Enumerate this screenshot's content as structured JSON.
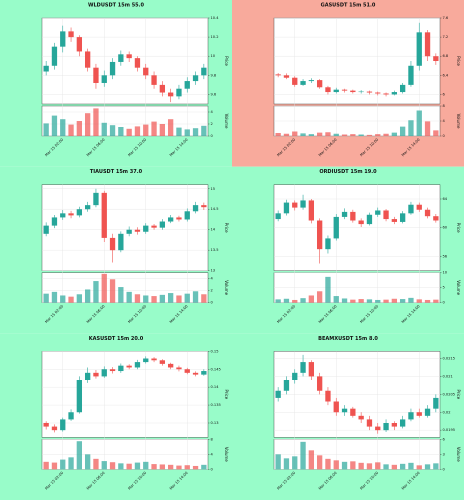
{
  "chart_data": [
    {
      "type": "candlestick",
      "title": "WLDUSDT 15m 55.0",
      "background": "#98fcc9",
      "ylabel": "Price",
      "vol_label": "Volume",
      "up_color": "#26a69a",
      "down_color": "#ef5350",
      "grid": true,
      "categories": [
        null,
        null,
        "Mar 15 02:00",
        null,
        null,
        null,
        null,
        "Mar 15 06:00",
        null,
        null,
        null,
        null,
        "Mar 15 10:00",
        null,
        null,
        null,
        null,
        "Mar 15 14:00",
        null,
        null
      ],
      "open": [
        9.84,
        9.9,
        10.1,
        10.26,
        10.2,
        10.05,
        9.88,
        9.72,
        9.8,
        9.94,
        10.02,
        9.98,
        9.88,
        9.8,
        9.7,
        9.62,
        9.58,
        9.66,
        9.74,
        9.8
      ],
      "high": [
        9.95,
        10.14,
        10.32,
        10.3,
        10.22,
        10.08,
        9.92,
        9.85,
        9.98,
        10.06,
        10.05,
        10.0,
        9.92,
        9.84,
        9.74,
        9.66,
        9.7,
        9.78,
        9.84,
        9.92
      ],
      "low": [
        9.8,
        9.86,
        10.04,
        10.15,
        10.0,
        9.84,
        9.66,
        9.68,
        9.76,
        9.9,
        9.94,
        9.84,
        9.76,
        9.66,
        9.58,
        9.52,
        9.55,
        9.62,
        9.7,
        9.76
      ],
      "close": [
        9.9,
        10.1,
        10.26,
        10.2,
        10.05,
        9.88,
        9.72,
        9.8,
        9.94,
        10.02,
        9.98,
        9.88,
        9.8,
        9.7,
        9.62,
        9.58,
        9.66,
        9.74,
        9.8,
        9.88
      ],
      "volume": [
        2.1,
        3.4,
        2.8,
        1.9,
        2.5,
        3.8,
        4.6,
        2.2,
        1.8,
        1.5,
        1.2,
        1.6,
        1.9,
        2.4,
        2.0,
        2.8,
        1.4,
        1.1,
        1.3,
        1.7
      ],
      "ylim": [
        9.5,
        10.4
      ],
      "yticks": [
        9.6,
        9.8,
        10,
        10.2,
        10.4
      ],
      "vol_ylim": [
        0,
        5
      ],
      "vol_yticks": [
        0,
        2,
        4
      ]
    },
    {
      "type": "candlestick",
      "title": "GASUSDT 15m 51.0",
      "background": "#f8aa9c",
      "ylabel": "Price",
      "vol_label": "Volume",
      "up_color": "#26a69a",
      "down_color": "#ef5350",
      "grid": true,
      "categories": [
        null,
        null,
        "Mar 15 02:00",
        null,
        null,
        null,
        null,
        "Mar 15 06:00",
        null,
        null,
        null,
        null,
        "Mar 15 10:00",
        null,
        null,
        null,
        null,
        "Mar 15 14:00",
        null,
        null
      ],
      "open": [
        6.42,
        6.4,
        6.35,
        6.2,
        6.28,
        6.3,
        6.15,
        6.05,
        6.1,
        6.08,
        6.05,
        6.06,
        6.04,
        6.02,
        6.0,
        6.05,
        6.2,
        6.6,
        7.3,
        6.8
      ],
      "high": [
        6.45,
        6.44,
        6.38,
        6.32,
        6.34,
        6.32,
        6.18,
        6.14,
        6.12,
        6.1,
        6.09,
        6.08,
        6.06,
        6.04,
        6.08,
        6.24,
        6.7,
        7.5,
        7.35,
        6.86
      ],
      "low": [
        6.36,
        6.32,
        6.16,
        6.18,
        6.24,
        6.12,
        6.0,
        6.02,
        6.04,
        6.02,
        6.02,
        6.0,
        5.98,
        5.96,
        5.98,
        6.02,
        6.16,
        6.5,
        6.7,
        6.62
      ],
      "close": [
        6.4,
        6.35,
        6.2,
        6.28,
        6.3,
        6.15,
        6.05,
        6.1,
        6.08,
        6.05,
        6.06,
        6.04,
        6.02,
        6.0,
        6.05,
        6.2,
        6.6,
        7.3,
        6.8,
        6.7
      ],
      "volume": [
        0.8,
        0.6,
        1.2,
        0.7,
        0.5,
        0.9,
        1.0,
        0.6,
        0.4,
        0.5,
        0.4,
        0.3,
        0.5,
        0.6,
        0.9,
        2.5,
        4.2,
        6.8,
        3.9,
        1.5
      ],
      "ylim": [
        5.8,
        7.6
      ],
      "yticks": [
        6,
        6.4,
        6.8,
        7.2,
        7.6
      ],
      "vol_ylim": [
        0,
        8
      ],
      "vol_yticks": [
        0,
        4,
        8
      ]
    },
    {
      "type": "candlestick",
      "title": "TIAUSDT 15m 37.0",
      "background": "#98fcc9",
      "ylabel": "Price",
      "vol_label": "Volume",
      "up_color": "#26a69a",
      "down_color": "#ef5350",
      "grid": true,
      "categories": [
        null,
        null,
        "Mar 15 02:00",
        null,
        null,
        null,
        null,
        "Mar 15 06:00",
        null,
        null,
        null,
        null,
        "Mar 15 10:00",
        null,
        null,
        null,
        null,
        "Mar 15 14:00",
        null,
        null
      ],
      "open": [
        13.9,
        14.1,
        14.3,
        14.4,
        14.35,
        14.5,
        14.6,
        14.9,
        13.8,
        13.5,
        13.9,
        14.0,
        13.95,
        14.1,
        14.05,
        14.2,
        14.3,
        14.25,
        14.45,
        14.6
      ],
      "high": [
        14.18,
        14.36,
        14.48,
        14.46,
        14.56,
        14.68,
        15.0,
        14.95,
        13.9,
        13.96,
        14.08,
        14.06,
        14.16,
        14.14,
        14.26,
        14.36,
        14.34,
        14.52,
        14.68,
        14.66
      ],
      "low": [
        13.84,
        14.04,
        14.24,
        14.28,
        14.3,
        14.44,
        14.55,
        13.7,
        13.2,
        13.45,
        13.84,
        13.88,
        13.9,
        14.0,
        14.0,
        14.16,
        14.2,
        14.2,
        14.4,
        14.48
      ],
      "close": [
        14.1,
        14.3,
        14.4,
        14.35,
        14.5,
        14.6,
        14.9,
        13.8,
        13.5,
        13.9,
        14.0,
        13.95,
        14.1,
        14.05,
        14.2,
        14.3,
        14.25,
        14.45,
        14.6,
        14.55
      ],
      "volume": [
        1.5,
        1.8,
        1.2,
        1.0,
        1.4,
        2.2,
        3.6,
        4.8,
        3.9,
        2.6,
        1.8,
        1.4,
        1.2,
        1.1,
        1.3,
        1.6,
        1.2,
        1.5,
        1.9,
        1.4
      ],
      "ylim": [
        13.0,
        15.1
      ],
      "yticks": [
        13,
        13.5,
        14,
        14.5,
        15
      ],
      "vol_ylim": [
        0,
        5
      ],
      "vol_yticks": [
        0,
        2,
        4
      ]
    },
    {
      "type": "candlestick",
      "title": "ORDIUSDT 15m 19.0",
      "background": "#98fcc9",
      "ylabel": "Price",
      "vol_label": "Volume",
      "up_color": "#26a69a",
      "down_color": "#ef5350",
      "grid": true,
      "categories": [
        null,
        null,
        "Mar 15 02:00",
        null,
        null,
        null,
        null,
        "Mar 15 06:00",
        null,
        null,
        null,
        null,
        "Mar 15 10:00",
        null,
        null,
        null,
        null,
        "Mar 15 14:00",
        null,
        null
      ],
      "open": [
        61.2,
        62.0,
        63.5,
        62.8,
        63.8,
        61.0,
        57.0,
        58.5,
        61.5,
        62.2,
        61.0,
        60.5,
        61.8,
        62.4,
        61.2,
        60.8,
        62.0,
        63.2,
        62.5,
        61.6
      ],
      "high": [
        62.4,
        63.9,
        63.8,
        64.6,
        64.0,
        61.3,
        58.9,
        61.9,
        62.7,
        62.5,
        61.3,
        62.1,
        62.8,
        62.6,
        61.5,
        62.3,
        63.6,
        63.5,
        62.8,
        61.9
      ],
      "low": [
        60.9,
        61.7,
        62.4,
        62.5,
        60.6,
        55.0,
        56.4,
        58.2,
        61.2,
        60.7,
        60.1,
        60.3,
        61.5,
        60.9,
        60.5,
        60.6,
        61.8,
        62.2,
        61.3,
        60.7
      ],
      "close": [
        62.0,
        63.5,
        62.8,
        63.8,
        61.0,
        57.0,
        58.5,
        61.5,
        62.2,
        61.0,
        60.5,
        61.8,
        62.4,
        61.2,
        60.8,
        62.0,
        63.2,
        62.5,
        61.6,
        61.0
      ],
      "volume": [
        1.1,
        1.3,
        0.9,
        1.5,
        2.4,
        3.8,
        8.6,
        2.2,
        1.4,
        1.0,
        1.2,
        1.1,
        0.9,
        1.0,
        1.3,
        1.2,
        1.6,
        1.1,
        0.9,
        1.0
      ],
      "ylim": [
        54,
        66
      ],
      "yticks": [
        56,
        60,
        64
      ],
      "vol_ylim": [
        0,
        10
      ],
      "vol_yticks": [
        0,
        5,
        10
      ]
    },
    {
      "type": "candlestick",
      "title": "KASUSDT 15m 20.0",
      "background": "#98fcc9",
      "ylabel": "Price",
      "vol_label": "Volume",
      "up_color": "#26a69a",
      "down_color": "#ef5350",
      "grid": true,
      "categories": [
        null,
        null,
        "Mar 15 02:00",
        null,
        null,
        null,
        null,
        "Mar 15 06:00",
        null,
        null,
        null,
        null,
        "Mar 15 10:00",
        null,
        null,
        null,
        null,
        "Mar 15 14:00",
        null,
        null
      ],
      "open": [
        0.13,
        0.129,
        0.128,
        0.131,
        0.133,
        0.142,
        0.144,
        0.143,
        0.145,
        0.1445,
        0.146,
        0.1455,
        0.147,
        0.148,
        0.1475,
        0.1465,
        0.1455,
        0.145,
        0.144,
        0.1435
      ],
      "high": [
        0.1305,
        0.1296,
        0.1315,
        0.1338,
        0.143,
        0.1455,
        0.1448,
        0.1458,
        0.1456,
        0.1466,
        0.1464,
        0.1476,
        0.1486,
        0.1484,
        0.1478,
        0.1468,
        0.146,
        0.1454,
        0.1444,
        0.145
      ],
      "low": [
        0.1282,
        0.1274,
        0.1276,
        0.1306,
        0.1326,
        0.1412,
        0.1424,
        0.1426,
        0.1438,
        0.144,
        0.145,
        0.145,
        0.1466,
        0.147,
        0.146,
        0.145,
        0.1444,
        0.1436,
        0.143,
        0.1432
      ],
      "close": [
        0.129,
        0.128,
        0.131,
        0.133,
        0.142,
        0.144,
        0.143,
        0.145,
        0.1445,
        0.146,
        0.1455,
        0.147,
        0.148,
        0.1475,
        0.1465,
        0.1455,
        0.145,
        0.144,
        0.1435,
        0.1445
      ],
      "volume": [
        2.0,
        1.8,
        2.6,
        3.2,
        7.5,
        4.0,
        2.8,
        2.2,
        1.9,
        1.6,
        1.5,
        1.8,
        2.0,
        1.4,
        1.3,
        1.2,
        1.0,
        1.1,
        0.9,
        1.2
      ],
      "ylim": [
        0.126,
        0.15
      ],
      "yticks": [
        0.13,
        0.135,
        0.14,
        0.145,
        0.15
      ],
      "vol_ylim": [
        0,
        8
      ],
      "vol_yticks": [
        0,
        4,
        8
      ]
    },
    {
      "type": "candlestick",
      "title": "BEAMXUSDT 15m 8.0",
      "background": "#98fcc9",
      "ylabel": "Price",
      "vol_label": "Volume",
      "up_color": "#26a69a",
      "down_color": "#ef5350",
      "grid": true,
      "categories": [
        null,
        null,
        "Mar 15 02:00",
        null,
        null,
        null,
        null,
        "Mar 15 06:00",
        null,
        null,
        null,
        null,
        "Mar 15 10:00",
        null,
        null,
        null,
        null,
        "Mar 15 14:00",
        null,
        null
      ],
      "open": [
        0.0204,
        0.0206,
        0.0209,
        0.0211,
        0.0214,
        0.021,
        0.0206,
        0.0203,
        0.02,
        0.0201,
        0.0199,
        0.0198,
        0.0196,
        0.0195,
        0.0197,
        0.0196,
        0.0198,
        0.02,
        0.0199,
        0.0201
      ],
      "high": [
        0.0207,
        0.021,
        0.0212,
        0.0216,
        0.02145,
        0.0211,
        0.0207,
        0.0204,
        0.0202,
        0.02015,
        0.02,
        0.0199,
        0.0197,
        0.0198,
        0.01975,
        0.0199,
        0.0201,
        0.0201,
        0.0202,
        0.0205
      ],
      "low": [
        0.0203,
        0.0205,
        0.0208,
        0.021,
        0.0209,
        0.0205,
        0.0202,
        0.0199,
        0.0199,
        0.01985,
        0.0197,
        0.0195,
        0.0194,
        0.01945,
        0.0195,
        0.01955,
        0.01975,
        0.01985,
        0.01985,
        0.02
      ],
      "close": [
        0.0206,
        0.0209,
        0.0211,
        0.0214,
        0.021,
        0.0206,
        0.0203,
        0.02,
        0.0201,
        0.0199,
        0.0198,
        0.0196,
        0.0195,
        0.0197,
        0.0196,
        0.0198,
        0.02,
        0.0199,
        0.0201,
        0.0204
      ],
      "volume": [
        3.0,
        2.2,
        2.6,
        5.5,
        3.8,
        2.8,
        2.1,
        1.8,
        1.5,
        1.6,
        1.3,
        1.2,
        1.4,
        1.0,
        0.9,
        1.1,
        1.3,
        0.8,
        1.0,
        1.2
      ],
      "ylim": [
        0.0193,
        0.0217
      ],
      "yticks": [
        0.0195,
        0.02,
        0.0205,
        0.021,
        0.0215
      ],
      "vol_ylim": [
        0,
        6
      ],
      "vol_yticks": [
        0,
        3,
        6
      ]
    }
  ]
}
